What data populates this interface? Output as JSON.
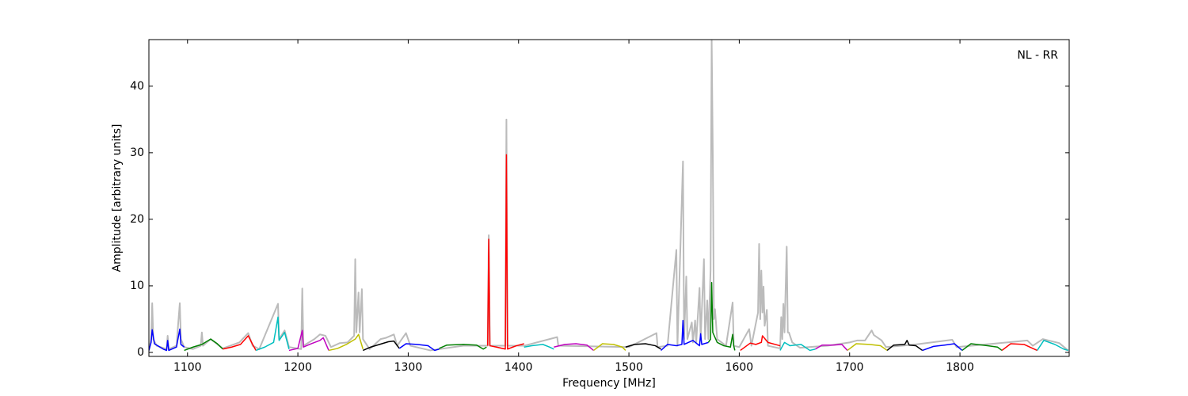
{
  "chart_data": {
    "type": "line",
    "xlabel": "Frequency [MHz]",
    "ylabel": "Amplitude [arbitrary units]",
    "annotation": "NL - RR",
    "xlim": [
      1065,
      1899
    ],
    "xticks": [
      1100,
      1200,
      1300,
      1400,
      1500,
      1600,
      1700,
      1800
    ],
    "ylim": [
      -0.6,
      47
    ],
    "yticks": [
      0,
      10,
      20,
      30,
      40
    ],
    "grid": false,
    "series": [
      {
        "color": "#bbbbbb",
        "x": [
          1065,
          1067,
          1068,
          1069,
          1072,
          1081,
          1082,
          1083,
          1090,
          1093,
          1094,
          1097,
          1105,
          1112,
          1113,
          1114,
          1121,
          1132,
          1147,
          1155,
          1159,
          1165,
          1182,
          1183,
          1188,
          1192,
          1203,
          1204,
          1205,
          1215,
          1220,
          1225,
          1230,
          1238,
          1245,
          1251,
          1252,
          1253,
          1255,
          1256,
          1258,
          1259,
          1265,
          1275,
          1280,
          1287,
          1290,
          1298,
          1302,
          1320,
          1350,
          1372,
          1373,
          1374,
          1388,
          1389,
          1390,
          1405,
          1435,
          1436,
          1500,
          1525,
          1526,
          1535,
          1543,
          1544,
          1549,
          1550,
          1552,
          1553,
          1557,
          1558,
          1560,
          1561,
          1564,
          1565,
          1568,
          1569,
          1571,
          1572,
          1574,
          1575,
          1576,
          1577,
          1578,
          1580,
          1588,
          1594,
          1595,
          1600,
          1609,
          1611,
          1617,
          1618,
          1619,
          1620,
          1621,
          1622,
          1623,
          1625,
          1626,
          1637,
          1638,
          1639,
          1640,
          1641,
          1643,
          1644,
          1645,
          1648,
          1655,
          1680,
          1700,
          1707,
          1714,
          1720,
          1722,
          1729,
          1733,
          1760,
          1793,
          1797,
          1830,
          1861,
          1866,
          1875,
          1890,
          1898
        ],
        "values": [
          0.3,
          2,
          7.4,
          2,
          1,
          0.5,
          2.5,
          0.5,
          1,
          7.4,
          2,
          0.8,
          0.5,
          1,
          3,
          1,
          2,
          0.6,
          1.5,
          2.9,
          1,
          0.5,
          7.3,
          2,
          3.3,
          0.8,
          0.5,
          9.6,
          1,
          2,
          2.7,
          2.5,
          0.8,
          1.4,
          1.5,
          2.5,
          14,
          3,
          9,
          3,
          9.5,
          2,
          0.5,
          2,
          2.2,
          2.7,
          1,
          2.9,
          1,
          0.3,
          1,
          1,
          17.6,
          1,
          1,
          35,
          1,
          1,
          2.3,
          1,
          0.8,
          2.9,
          0.8,
          1,
          15.4,
          1,
          28.7,
          2,
          11.4,
          2,
          4.5,
          1.5,
          4.8,
          1.5,
          9.7,
          2,
          14,
          2,
          7.8,
          2,
          12.3,
          47,
          30,
          5,
          6.5,
          2,
          1,
          7.5,
          1,
          0.8,
          3.5,
          1,
          6,
          16.3,
          5,
          12.3,
          6,
          9.9,
          4,
          6.4,
          1,
          0.6,
          5.3,
          2,
          7.3,
          3,
          15.9,
          3,
          3,
          1.5,
          0.7,
          1,
          1.5,
          1.8,
          1.8,
          3.3,
          2.6,
          1.8,
          0.8,
          1.2,
          1.9,
          0.8,
          1.3,
          1.8,
          1,
          2,
          1.4,
          0.3
        ]
      },
      {
        "color": "#0000ff",
        "x": [
          1065,
          1067,
          1068,
          1070,
          1078,
          1081,
          1082,
          1083,
          1090,
          1093,
          1094,
          1097
        ],
        "values": [
          0.3,
          1.5,
          3.4,
          1.3,
          0.5,
          0.3,
          1.8,
          0.3,
          0.8,
          3.5,
          1.2,
          0.8
        ]
      },
      {
        "color": "#008000",
        "x": [
          1097,
          1105,
          1113,
          1121,
          1127,
          1132
        ],
        "values": [
          0.3,
          0.8,
          1.2,
          2,
          1.3,
          0.5
        ]
      },
      {
        "color": "#ff0000",
        "x": [
          1132,
          1140,
          1148,
          1155,
          1159,
          1162
        ],
        "values": [
          0.5,
          0.8,
          1.2,
          2.5,
          1.2,
          0.3
        ]
      },
      {
        "color": "#00bfbf",
        "x": [
          1162,
          1170,
          1178,
          1182,
          1183,
          1188,
          1192
        ],
        "values": [
          0.3,
          0.8,
          1.5,
          5.3,
          1.8,
          3,
          0.5
        ]
      },
      {
        "color": "#bf00bf",
        "x": [
          1192,
          1200,
          1204,
          1205,
          1212,
          1220,
          1223,
          1228
        ],
        "values": [
          0.3,
          0.6,
          3.3,
          0.8,
          1.3,
          1.8,
          2.2,
          0.3
        ]
      },
      {
        "color": "#bfbf00",
        "x": [
          1228,
          1236,
          1244,
          1252,
          1255,
          1259
        ],
        "values": [
          0.3,
          0.6,
          1.2,
          2,
          2.7,
          0.5
        ]
      },
      {
        "color": "#000000",
        "x": [
          1259,
          1266,
          1274,
          1282,
          1287,
          1292
        ],
        "values": [
          0.3,
          0.8,
          1.2,
          1.6,
          1.7,
          0.6
        ]
      },
      {
        "color": "#0000ff",
        "x": [
          1292,
          1298,
          1308,
          1318,
          1324,
          1328
        ],
        "values": [
          0.6,
          1.3,
          1.2,
          1,
          0.3,
          0.5
        ]
      },
      {
        "color": "#008000",
        "x": [
          1328,
          1335,
          1350,
          1362,
          1368,
          1371
        ],
        "values": [
          0.6,
          1.1,
          1.2,
          1.1,
          0.5,
          0.8
        ]
      },
      {
        "color": "#ff0000",
        "x": [
          1372,
          1373,
          1374,
          1380,
          1388,
          1389,
          1390,
          1398,
          1405
        ],
        "values": [
          1,
          17,
          1,
          0.8,
          0.5,
          29.7,
          0.5,
          1,
          1.3
        ]
      },
      {
        "color": "#00bfbf",
        "x": [
          1405,
          1412,
          1422,
          1428,
          1432
        ],
        "values": [
          0.8,
          1,
          1.2,
          0.8,
          0.5
        ]
      },
      {
        "color": "#bf00bf",
        "x": [
          1432,
          1442,
          1452,
          1462,
          1468
        ],
        "values": [
          0.8,
          1.2,
          1.3,
          1.1,
          0.3
        ]
      },
      {
        "color": "#bfbf00",
        "x": [
          1468,
          1476,
          1486,
          1494,
          1497
        ],
        "values": [
          0.3,
          1.3,
          1.2,
          0.8,
          0.3
        ]
      },
      {
        "color": "#000000",
        "x": [
          1497,
          1505,
          1515,
          1524,
          1529
        ],
        "values": [
          0.8,
          1.2,
          1.3,
          1,
          0.5
        ]
      },
      {
        "color": "#0000ff",
        "x": [
          1529,
          1535,
          1543,
          1548,
          1549,
          1550,
          1558,
          1564,
          1565,
          1566,
          1572
        ],
        "values": [
          0.3,
          1.2,
          1,
          1.2,
          4.8,
          1.2,
          1.8,
          1,
          2.8,
          1.2,
          1.5
        ]
      },
      {
        "color": "#008000",
        "x": [
          1572,
          1574,
          1575,
          1576,
          1580,
          1586,
          1592,
          1594,
          1595,
          1596
        ],
        "values": [
          1.5,
          2,
          10.5,
          3,
          1.5,
          1,
          0.8,
          2.7,
          1,
          0.3
        ]
      },
      {
        "color": "#ff0000",
        "x": [
          1601,
          1610,
          1615,
          1620,
          1621,
          1626,
          1637
        ],
        "values": [
          0.3,
          1.4,
          1.2,
          1.5,
          2.5,
          1.5,
          1
        ]
      },
      {
        "color": "#00bfbf",
        "x": [
          1637,
          1641,
          1643,
          1646,
          1656,
          1664,
          1669
        ],
        "values": [
          0.3,
          1.5,
          1.3,
          1,
          1.2,
          0.3,
          0.5
        ]
      },
      {
        "color": "#bf00bf",
        "x": [
          1669,
          1675,
          1685,
          1693,
          1698
        ],
        "values": [
          0.5,
          1.1,
          1.1,
          1.2,
          0.3
        ]
      },
      {
        "color": "#bfbf00",
        "x": [
          1698,
          1706,
          1718,
          1728,
          1734
        ],
        "values": [
          0.3,
          1.3,
          1.2,
          1,
          0.3
        ]
      },
      {
        "color": "#000000",
        "x": [
          1734,
          1740,
          1750,
          1752,
          1754,
          1760,
          1766
        ],
        "values": [
          0.3,
          1.1,
          1.2,
          1.8,
          1.1,
          1,
          0.3
        ]
      },
      {
        "color": "#0000ff",
        "x": [
          1766,
          1776,
          1786,
          1795,
          1802
        ],
        "values": [
          0.3,
          0.9,
          1.1,
          1.3,
          0.3
        ]
      },
      {
        "color": "#008000",
        "x": [
          1802,
          1810,
          1825,
          1834,
          1838
        ],
        "values": [
          0.3,
          1.3,
          1,
          0.8,
          0.3
        ]
      },
      {
        "color": "#ff0000",
        "x": [
          1838,
          1846,
          1858,
          1866,
          1870
        ],
        "values": [
          0.3,
          1.3,
          1.2,
          0.6,
          0.3
        ]
      },
      {
        "color": "#00bfbf",
        "x": [
          1870,
          1876,
          1886,
          1894,
          1898
        ],
        "values": [
          0.3,
          1.8,
          1.2,
          0.5,
          0.3
        ]
      }
    ]
  }
}
